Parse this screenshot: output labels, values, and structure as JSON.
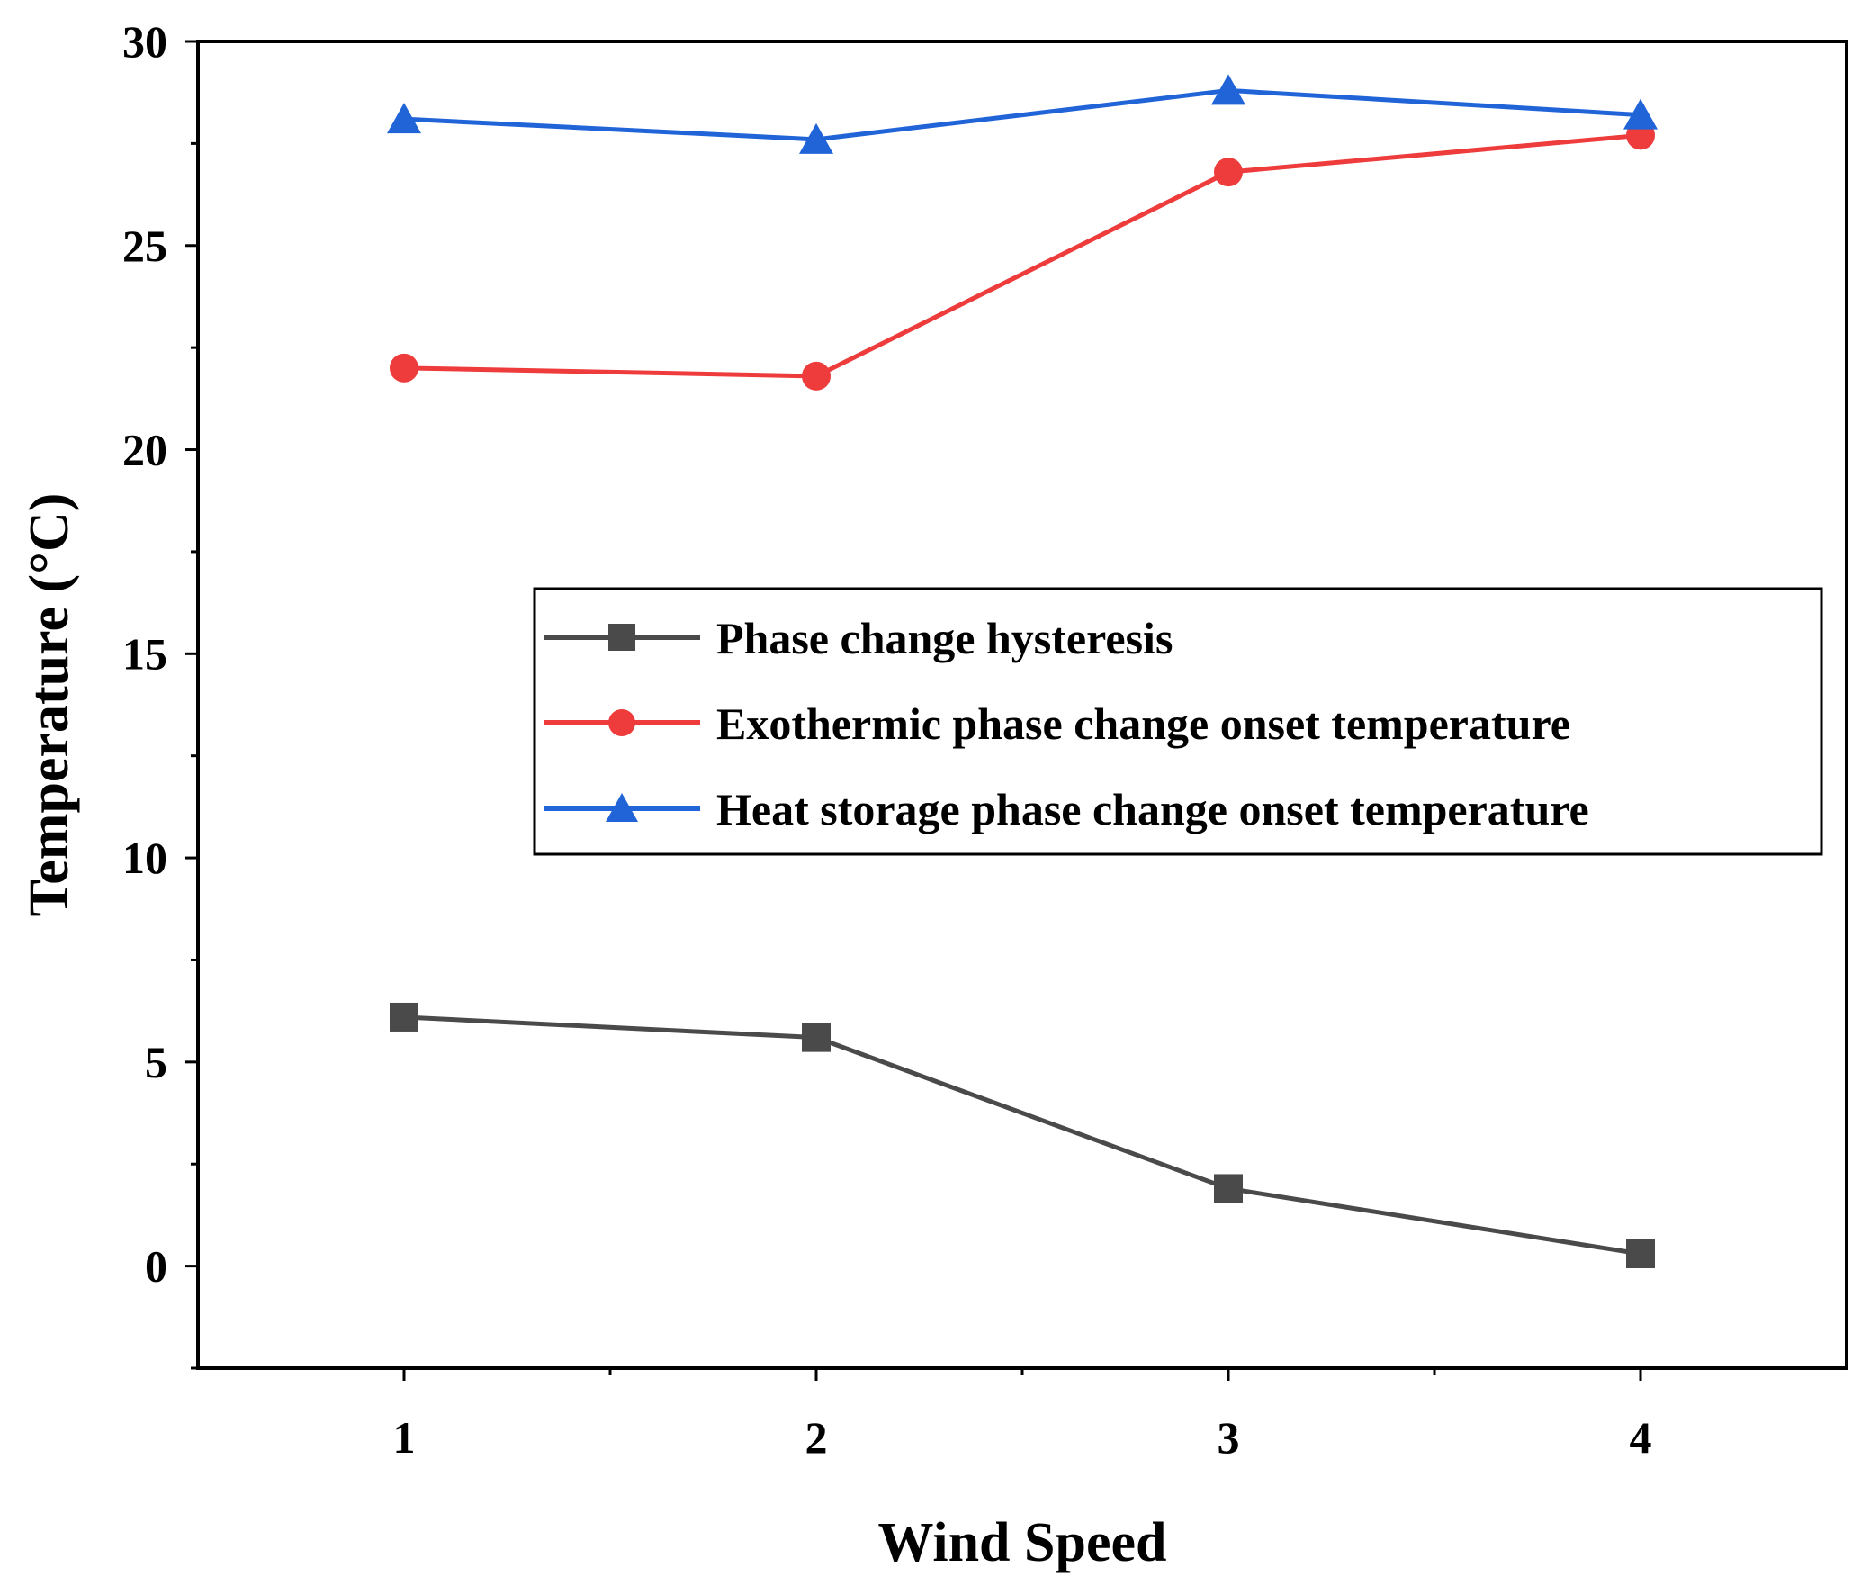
{
  "chart_data": {
    "type": "line",
    "title": "",
    "xlabel": "Wind Speed",
    "ylabel": "Temperature (°C)",
    "x": [
      1,
      2,
      3,
      4
    ],
    "xlim": [
      0.5,
      4.5
    ],
    "ylim": [
      -2.5,
      30
    ],
    "xticks": [
      1,
      2,
      3,
      4
    ],
    "yticks": [
      0,
      5,
      10,
      15,
      20,
      25,
      30
    ],
    "grid": false,
    "legend_position": "center-right",
    "series": [
      {
        "name": "Phase change hysteresis",
        "marker": "square",
        "color": "#4a4a4a",
        "values": [
          6.1,
          5.6,
          1.9,
          0.3
        ]
      },
      {
        "name": "Exothermic phase change onset temperature",
        "marker": "circle",
        "color": "#ee3b3b",
        "values": [
          22.0,
          21.8,
          26.8,
          27.7
        ]
      },
      {
        "name": "Heat storage phase change onset temperature",
        "marker": "triangle",
        "color": "#2064d8",
        "values": [
          28.1,
          27.6,
          28.8,
          28.2
        ]
      }
    ]
  }
}
